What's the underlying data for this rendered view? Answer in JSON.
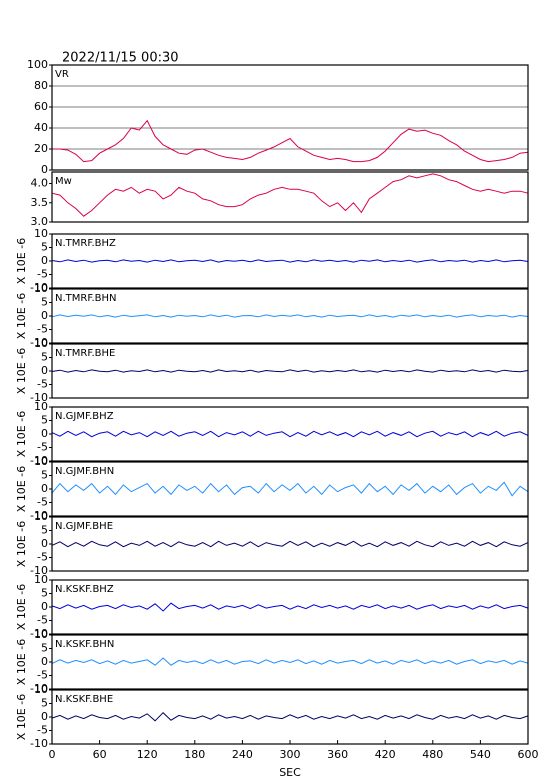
{
  "chart_data": {
    "type": "line",
    "title": "2022/11/15 00:30",
    "xlabel": "SEC",
    "xlim": [
      0,
      600
    ],
    "xticks": [
      0,
      60,
      120,
      180,
      240,
      300,
      360,
      420,
      480,
      540,
      600
    ],
    "x": [
      0,
      10,
      20,
      30,
      40,
      50,
      60,
      70,
      80,
      90,
      100,
      110,
      120,
      130,
      140,
      150,
      160,
      170,
      180,
      190,
      200,
      210,
      220,
      230,
      240,
      250,
      260,
      270,
      280,
      290,
      300,
      310,
      320,
      330,
      340,
      350,
      360,
      370,
      380,
      390,
      400,
      410,
      420,
      430,
      440,
      450,
      460,
      470,
      480,
      490,
      500,
      510,
      520,
      530,
      540,
      550,
      560,
      570,
      580,
      590,
      600
    ],
    "panels": [
      {
        "ylim": [
          0,
          100
        ],
        "yticks": [
          0,
          20,
          40,
          60,
          80,
          100
        ],
        "grid": true,
        "series": [
          {
            "name": "VR",
            "color": "#dd0044",
            "values": [
              20,
              20,
              19,
              15,
              8,
              9,
              16,
              20,
              24,
              30,
              40,
              38,
              47,
              32,
              24,
              20,
              16,
              15,
              19,
              20,
              17,
              14,
              12,
              11,
              10,
              12,
              16,
              19,
              22,
              26,
              30,
              22,
              18,
              14,
              12,
              10,
              11,
              10,
              8,
              8,
              9,
              12,
              18,
              26,
              34,
              39,
              37,
              38,
              35,
              33,
              28,
              24,
              18,
              14,
              10,
              8,
              9,
              10,
              12,
              16,
              17
            ]
          }
        ]
      },
      {
        "ylim": [
          3.0,
          4.3
        ],
        "yticks": [
          {
            "value": 3,
            "label": "3.0"
          },
          3.5,
          {
            "value": 4,
            "label": "4.0"
          }
        ],
        "grid": false,
        "series": [
          {
            "name": "Mw",
            "color": "#dd0044",
            "values": [
              3.75,
              3.7,
              3.5,
              3.35,
              3.15,
              3.3,
              3.5,
              3.7,
              3.85,
              3.8,
              3.9,
              3.75,
              3.85,
              3.8,
              3.6,
              3.7,
              3.9,
              3.8,
              3.75,
              3.6,
              3.55,
              3.45,
              3.4,
              3.4,
              3.45,
              3.6,
              3.7,
              3.75,
              3.85,
              3.9,
              3.85,
              3.85,
              3.8,
              3.75,
              3.55,
              3.4,
              3.5,
              3.3,
              3.5,
              3.25,
              3.6,
              3.75,
              3.9,
              4.05,
              4.1,
              4.2,
              4.15,
              4.2,
              4.25,
              4.2,
              4.1,
              4.05,
              3.95,
              3.85,
              3.8,
              3.85,
              3.8,
              3.75,
              3.8,
              3.8,
              3.75
            ]
          }
        ]
      },
      {
        "ylabel": "X 10E -6",
        "ylim": [
          -10,
          10
        ],
        "yticks": [
          -10,
          -5,
          0,
          5,
          10
        ],
        "grid": false,
        "series": [
          {
            "name": "N.TMRF.BHZ",
            "color": "#0000dd",
            "values": [
              0.2,
              -0.3,
              0.4,
              -0.2,
              0.3,
              -0.4,
              0.1,
              0.3,
              -0.3,
              0.4,
              -0.1,
              0.2,
              -0.4,
              0.3,
              -0.2,
              0.4,
              -0.3,
              0.1,
              0.3,
              -0.2,
              0.4,
              -0.4,
              0.2,
              -0.1,
              0.3,
              -0.3,
              0.4,
              -0.2,
              0.1,
              0.3,
              -0.4,
              0.2,
              -0.3,
              0.4,
              -0.1,
              0.3,
              -0.2,
              0.2,
              -0.4,
              0.3,
              -0.1,
              0.4,
              -0.3,
              0.2,
              -0.2,
              0.3,
              -0.4,
              0.1,
              0.4,
              -0.3,
              0.2,
              -0.1,
              0.3,
              -0.4,
              0.2,
              -0.2,
              0.4,
              -0.3,
              0.1,
              0.3,
              -0.2
            ]
          }
        ]
      },
      {
        "ylabel": "X 10E -6",
        "ylim": [
          -10,
          10
        ],
        "yticks": [
          -10,
          -5,
          0,
          5,
          10
        ],
        "grid": false,
        "series": [
          {
            "name": "N.TMRF.BHN",
            "color": "#1e8fff",
            "values": [
              -0.3,
              0.4,
              -0.2,
              0.3,
              -0.1,
              0.4,
              -0.3,
              0.2,
              -0.4,
              0.3,
              -0.2,
              0.1,
              0.4,
              -0.3,
              0.2,
              -0.4,
              0.3,
              -0.1,
              0.2,
              -0.3,
              0.4,
              -0.2,
              0.3,
              -0.4,
              0.1,
              0.2,
              -0.3,
              0.4,
              -0.2,
              0.3,
              -0.1,
              0.4,
              -0.3,
              0.2,
              -0.4,
              0.3,
              -0.2,
              0.1,
              0.3,
              -0.3,
              0.4,
              -0.2,
              0.2,
              -0.4,
              0.3,
              -0.1,
              0.4,
              -0.3,
              0.2,
              -0.2,
              0.3,
              -0.4,
              0.1,
              0.4,
              -0.3,
              0.2,
              -0.1,
              0.3,
              -0.4,
              0.2,
              -0.2
            ]
          }
        ]
      },
      {
        "ylabel": "X 10E -6",
        "ylim": [
          -10,
          10
        ],
        "yticks": [
          -10,
          -5,
          0,
          5,
          10
        ],
        "grid": false,
        "series": [
          {
            "name": "N.TMRF.BHE",
            "color": "#000066",
            "values": [
              -0.2,
              0.3,
              -0.4,
              0.2,
              -0.3,
              0.4,
              -0.1,
              -0.3,
              0.3,
              -0.4,
              0.1,
              -0.2,
              0.4,
              -0.3,
              0.2,
              -0.4,
              0.3,
              -0.1,
              -0.3,
              0.2,
              -0.4,
              0.4,
              -0.2,
              0.1,
              -0.3,
              0.3,
              -0.4,
              0.2,
              -0.1,
              -0.3,
              0.4,
              -0.2,
              0.3,
              -0.4,
              0.1,
              -0.3,
              0.2,
              -0.2,
              0.4,
              -0.3,
              0.1,
              -0.4,
              0.3,
              -0.2,
              0.2,
              -0.3,
              0.4,
              -0.1,
              -0.4,
              0.3,
              -0.2,
              0.1,
              -0.3,
              0.4,
              -0.2,
              0.2,
              -0.4,
              0.3,
              -0.1,
              -0.3,
              0.2
            ]
          }
        ]
      },
      {
        "ylabel": "X 10E -6",
        "ylim": [
          -10,
          10
        ],
        "yticks": [
          -10,
          -5,
          0,
          5,
          10
        ],
        "grid": false,
        "series": [
          {
            "name": "N.GJMF.BHZ",
            "color": "#0000dd",
            "values": [
              0.5,
              -0.8,
              1,
              -0.5,
              0.8,
              -1,
              0.3,
              0.8,
              -0.8,
              1,
              -0.3,
              0.5,
              -1,
              0.8,
              -0.5,
              1,
              -0.8,
              0.3,
              0.8,
              -0.5,
              1,
              -1,
              0.5,
              -0.3,
              0.8,
              -0.8,
              1,
              -0.5,
              0.3,
              0.8,
              -1,
              0.5,
              -0.8,
              1,
              -0.3,
              0.8,
              -0.5,
              0.5,
              -1,
              0.8,
              -0.3,
              1,
              -0.8,
              0.5,
              -0.5,
              0.8,
              -1,
              0.3,
              1,
              -0.8,
              0.5,
              -0.3,
              0.8,
              -1,
              0.5,
              -0.5,
              1,
              -0.8,
              0.3,
              0.8,
              -0.5
            ]
          }
        ]
      },
      {
        "ylabel": "X 10E -6",
        "ylim": [
          -10,
          10
        ],
        "yticks": [
          -10,
          -5,
          0,
          5,
          10
        ],
        "grid": false,
        "series": [
          {
            "name": "N.GJMF.BHN",
            "color": "#1e8fff",
            "values": [
              -1.5,
              2,
              -1,
              1.5,
              -0.5,
              2,
              -1.5,
              1,
              -2,
              1.5,
              -1,
              0.5,
              2,
              -1.5,
              1,
              -2,
              1.5,
              -0.5,
              1,
              -1.5,
              2,
              -1,
              1.5,
              -2,
              0.5,
              1,
              -1.5,
              2,
              -1,
              1.5,
              -0.5,
              2,
              -1.5,
              1,
              -2,
              1.5,
              -1,
              0.5,
              1.5,
              -1.5,
              2,
              -1,
              1,
              -2,
              1.5,
              -0.5,
              2,
              -1.5,
              1,
              -1,
              1.5,
              -2,
              0.5,
              2,
              -1.5,
              1,
              -0.5,
              2.5,
              -2.5,
              1,
              -1
            ]
          }
        ]
      },
      {
        "ylabel": "X 10E -6",
        "ylim": [
          -10,
          10
        ],
        "yticks": [
          -10,
          -5,
          0,
          5,
          10
        ],
        "grid": false,
        "series": [
          {
            "name": "N.GJMF.BHE",
            "color": "#000066",
            "values": [
              -0.5,
              0.8,
              -1,
              0.5,
              -0.8,
              1,
              -0.3,
              -0.8,
              0.8,
              -1,
              0.3,
              -0.5,
              1,
              -0.8,
              0.5,
              -1,
              0.8,
              -0.3,
              -0.8,
              0.5,
              -1,
              1,
              -0.5,
              0.3,
              -0.8,
              0.8,
              -1,
              0.5,
              -0.3,
              -0.8,
              1,
              -0.5,
              0.8,
              -1,
              0.3,
              -0.8,
              0.5,
              -0.5,
              1,
              -0.8,
              0.3,
              -1,
              0.8,
              -0.5,
              0.5,
              -0.8,
              1,
              -0.3,
              -1,
              0.8,
              -0.5,
              0.3,
              -0.8,
              1,
              -0.5,
              0.5,
              -1,
              0.8,
              -0.3,
              -0.8,
              0.5
            ]
          }
        ]
      },
      {
        "ylabel": "X 10E -6",
        "ylim": [
          -10,
          10
        ],
        "yticks": [
          -10,
          -5,
          0,
          5,
          10
        ],
        "grid": false,
        "series": [
          {
            "name": "N.KSKF.BHZ",
            "color": "#0000dd",
            "values": [
              0.4,
              -0.6,
              0.8,
              -0.4,
              0.6,
              -0.8,
              0.2,
              0.6,
              -0.6,
              0.8,
              -0.2,
              0.4,
              -0.8,
              1.2,
              -1.5,
              1.4,
              -0.6,
              0.2,
              0.6,
              -0.4,
              0.8,
              -0.8,
              0.4,
              -0.2,
              0.6,
              -0.6,
              0.8,
              -0.4,
              0.2,
              0.6,
              -0.8,
              0.4,
              -0.6,
              0.8,
              -0.2,
              0.6,
              -0.4,
              0.4,
              -0.8,
              0.6,
              -0.2,
              0.8,
              -0.6,
              0.4,
              -0.4,
              0.6,
              -0.8,
              0.2,
              0.8,
              -0.6,
              0.4,
              -0.2,
              0.6,
              -0.8,
              0.4,
              -0.4,
              0.8,
              -0.6,
              0.2,
              0.6,
              -0.4
            ]
          }
        ]
      },
      {
        "ylabel": "X 10E -6",
        "ylim": [
          -10,
          10
        ],
        "yticks": [
          -10,
          -5,
          0,
          5,
          10
        ],
        "grid": false,
        "series": [
          {
            "name": "N.KSKF.BHN",
            "color": "#1e8fff",
            "values": [
              -0.6,
              0.8,
              -0.4,
              0.6,
              -0.2,
              0.8,
              -0.6,
              0.4,
              -0.8,
              0.6,
              -0.4,
              0.2,
              0.8,
              -1.2,
              1.5,
              -1.2,
              0.6,
              -0.2,
              0.4,
              -0.6,
              0.8,
              -0.4,
              0.6,
              -0.8,
              0.2,
              0.4,
              -0.6,
              0.8,
              -0.4,
              0.6,
              -0.2,
              0.8,
              -0.6,
              0.4,
              -0.8,
              0.6,
              -0.4,
              0.2,
              0.6,
              -0.6,
              0.8,
              -0.4,
              0.4,
              -0.8,
              0.6,
              -0.2,
              0.8,
              -0.6,
              0.4,
              -0.4,
              0.6,
              -0.8,
              0.2,
              0.8,
              -0.6,
              0.4,
              -0.2,
              0.6,
              -0.8,
              0.4,
              -0.4
            ]
          }
        ]
      },
      {
        "ylabel": "X 10E -6",
        "ylim": [
          -10,
          10
        ],
        "yticks": [
          -10,
          -5,
          0,
          5,
          10
        ],
        "grid": false,
        "series": [
          {
            "name": "N.KSKF.BHE",
            "color": "#000066",
            "values": [
              -0.4,
              0.6,
              -0.8,
              0.4,
              -0.6,
              0.8,
              -0.2,
              -0.6,
              0.6,
              -0.8,
              0.2,
              -0.4,
              1.2,
              -1.4,
              1.6,
              -1.2,
              0.6,
              -0.2,
              -0.6,
              0.4,
              -0.8,
              0.8,
              -0.4,
              0.2,
              -0.6,
              0.6,
              -0.8,
              0.4,
              -0.2,
              -0.6,
              0.8,
              -0.4,
              0.6,
              -0.8,
              0.2,
              -0.6,
              0.4,
              -0.4,
              0.8,
              -0.6,
              0.2,
              -0.8,
              0.6,
              -0.4,
              0.4,
              -0.6,
              0.8,
              -0.2,
              -0.8,
              0.6,
              -0.4,
              0.2,
              -0.6,
              0.8,
              -0.4,
              0.4,
              -0.8,
              0.6,
              -0.2,
              -0.6,
              0.4
            ]
          }
        ]
      }
    ]
  }
}
